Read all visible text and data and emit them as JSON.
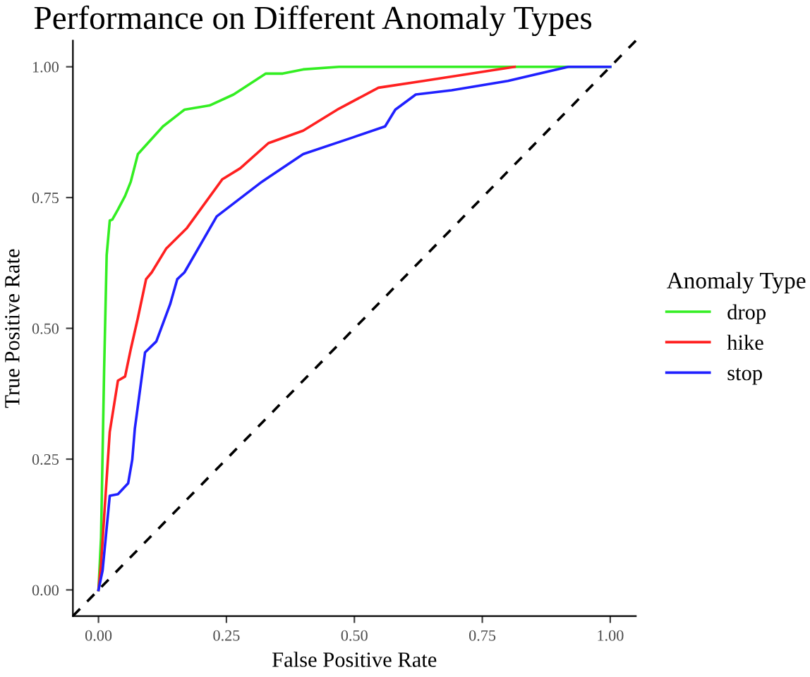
{
  "chart_data": {
    "type": "line",
    "title": "Performance on Different Anomaly Types",
    "xlabel": "False Positive Rate",
    "ylabel": "True Positive Rate",
    "legend_title": "Anomaly Type",
    "legend": "right",
    "grid": false,
    "marker": "none",
    "xlim": [
      -0.05,
      1.05
    ],
    "ylim": [
      -0.05,
      1.05
    ],
    "xticks": [
      {
        "value": 0,
        "label": "0.00"
      },
      {
        "value": 0.25,
        "label": "0.25"
      },
      {
        "value": 0.5,
        "label": "0.50"
      },
      {
        "value": 0.75,
        "label": "0.75"
      },
      {
        "value": 1,
        "label": "1.00"
      }
    ],
    "yticks": [
      {
        "value": 0,
        "label": "0.00"
      },
      {
        "value": 0.25,
        "label": "0.25"
      },
      {
        "value": 0.5,
        "label": "0.50"
      },
      {
        "value": 0.75,
        "label": "0.75"
      },
      {
        "value": 1,
        "label": "1.00"
      }
    ],
    "series": [
      {
        "name": "drop",
        "color": "#33ee22",
        "line_style": "solid",
        "x": [
          0,
          0.005,
          0.011,
          0.016,
          0.022,
          0.027,
          0.038,
          0.052,
          0.063,
          0.077,
          0.126,
          0.168,
          0.217,
          0.264,
          0.327,
          0.36,
          0.4,
          0.47,
          1
        ],
        "values": [
          0,
          0.1,
          0.42,
          0.64,
          0.706,
          0.708,
          0.727,
          0.753,
          0.78,
          0.833,
          0.886,
          0.918,
          0.926,
          0.947,
          0.987,
          0.987,
          0.995,
          1,
          1
        ]
      },
      {
        "name": "hike",
        "color": "#ff2020",
        "line_style": "solid",
        "x": [
          0,
          0.005,
          0.022,
          0.038,
          0.052,
          0.063,
          0.077,
          0.093,
          0.104,
          0.132,
          0.173,
          0.242,
          0.277,
          0.332,
          0.4,
          0.47,
          0.547,
          0.635,
          0.813
        ],
        "values": [
          0,
          0.05,
          0.302,
          0.4,
          0.408,
          0.46,
          0.52,
          0.594,
          0.607,
          0.652,
          0.692,
          0.785,
          0.806,
          0.854,
          0.878,
          0.92,
          0.96,
          0.973,
          1
        ]
      },
      {
        "name": "stop",
        "color": "#2020ff",
        "line_style": "solid",
        "x": [
          0,
          0.008,
          0.022,
          0.038,
          0.058,
          0.066,
          0.071,
          0.091,
          0.113,
          0.14,
          0.154,
          0.168,
          0.231,
          0.319,
          0.4,
          0.497,
          0.56,
          0.58,
          0.62,
          0.69,
          0.8,
          0.918,
          1
        ],
        "values": [
          0,
          0.037,
          0.18,
          0.183,
          0.204,
          0.249,
          0.308,
          0.454,
          0.475,
          0.546,
          0.594,
          0.607,
          0.714,
          0.78,
          0.833,
          0.865,
          0.886,
          0.918,
          0.947,
          0.955,
          0.973,
          1,
          1
        ]
      },
      {
        "color": "#000000",
        "line_style": "dashed",
        "x": [
          -0.05,
          1.05
        ],
        "values": [
          -0.05,
          1.05
        ]
      }
    ]
  }
}
